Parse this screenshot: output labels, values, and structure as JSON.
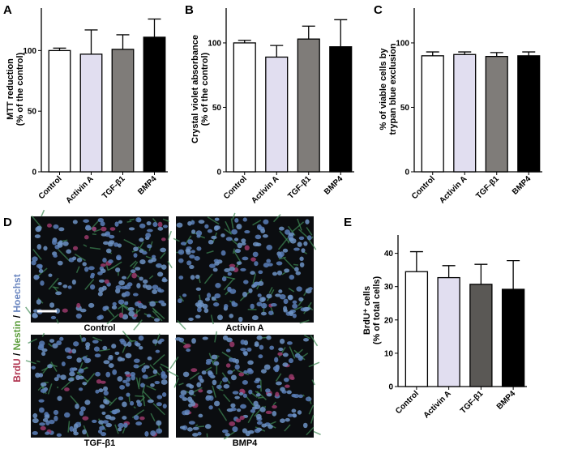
{
  "chart_data": [
    {
      "type": "bar",
      "panel": "A",
      "ylabel": [
        "MTT reduction",
        "(% of the control)"
      ],
      "categories": [
        "Control",
        "Activin A",
        "TGF-β1",
        "BMP4"
      ],
      "values": [
        100,
        97,
        101,
        111
      ],
      "errors": [
        2,
        20,
        12,
        15
      ],
      "colors": [
        "#ffffff",
        "#e1def0",
        "#7f7c79",
        "#000000"
      ],
      "ylim": [
        0,
        135
      ],
      "yticks": [
        0,
        50,
        100
      ]
    },
    {
      "type": "bar",
      "panel": "B",
      "ylabel": [
        "Crystal violet absorbance",
        "(% of the control)"
      ],
      "categories": [
        "Control",
        "Activin A",
        "TGF-β1",
        "BMP4"
      ],
      "values": [
        100,
        89,
        103,
        97
      ],
      "errors": [
        2,
        9,
        10,
        21
      ],
      "colors": [
        "#ffffff",
        "#e1def0",
        "#7f7c79",
        "#000000"
      ],
      "ylim": [
        0,
        127
      ],
      "yticks": [
        0,
        50,
        100
      ]
    },
    {
      "type": "bar",
      "panel": "C",
      "ylabel": [
        "% of viable cells by",
        "trypan blue exclusion"
      ],
      "categories": [
        "Control",
        "Activin A",
        "TGF-β1",
        "BMP4"
      ],
      "values": [
        90,
        91,
        89.5,
        90
      ],
      "errors": [
        3,
        2,
        3,
        3
      ],
      "colors": [
        "#ffffff",
        "#e1def0",
        "#7f7c79",
        "#000000"
      ],
      "ylim": [
        0,
        127
      ],
      "yticks": [
        0,
        50,
        100
      ]
    },
    {
      "type": "bar",
      "panel": "E",
      "ylabel": [
        "BrdU⁺ cells",
        "(% of total cells)"
      ],
      "categories": [
        "Control",
        "Activin A",
        "TGF-β1",
        "BMP4"
      ],
      "values": [
        34.5,
        32.7,
        30.7,
        29.2
      ],
      "errors": [
        6,
        3.6,
        6,
        8.6
      ],
      "colors": [
        "#ffffff",
        "#e1def0",
        "#5a5855",
        "#000000"
      ],
      "ylim": [
        0,
        45.5
      ],
      "yticks": [
        0,
        10,
        20,
        30,
        40
      ]
    }
  ],
  "panel_d": {
    "panel": "D",
    "stains": [
      "BrdU",
      "Nestin",
      "Hoechst"
    ],
    "separator": "/",
    "images": [
      "Control",
      "Activin A",
      "TGF-β1",
      "BMP4"
    ]
  }
}
